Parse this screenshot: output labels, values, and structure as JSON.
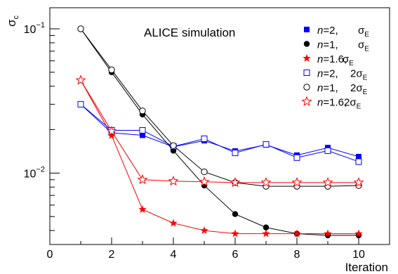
{
  "chart_data": {
    "type": "scatter",
    "title": "ALICE simulation",
    "xlabel": "Iteration",
    "ylabel": "σ",
    "ylabel_sub": "c",
    "xlim": [
      0,
      11
    ],
    "ylim": [
      0.0032,
      0.14
    ],
    "yscale": "log",
    "grid": false,
    "legend_position": "top-right",
    "x_ticks": [
      0,
      2,
      4,
      6,
      8,
      10
    ],
    "x_tick_labels": [
      "0",
      "2",
      "4",
      "6",
      "8",
      "10"
    ],
    "y_ticks": [
      {
        "value": 0.1,
        "base": "10",
        "exp": "−1"
      },
      {
        "value": 0.01,
        "base": "10",
        "exp": "−2"
      }
    ],
    "series": [
      {
        "label_n": "n",
        "label_val": "=2,",
        "label_sigma": "σ",
        "label_pre": "",
        "label_sub": "E",
        "marker": "square-filled",
        "color": "#0000ff",
        "x": [
          1,
          2,
          3,
          4,
          5,
          6,
          7,
          8,
          9,
          10
        ],
        "y": [
          0.03,
          0.019,
          0.0183,
          0.0152,
          0.0168,
          0.0142,
          0.0157,
          0.0133,
          0.015,
          0.013
        ]
      },
      {
        "label_n": "n",
        "label_val": "=1,",
        "label_sigma": "σ",
        "label_pre": "",
        "label_sub": "E",
        "marker": "circle-filled",
        "color": "#000000",
        "x": [
          1,
          2,
          3,
          4,
          5,
          6,
          7,
          8,
          9,
          10
        ],
        "y": [
          0.1,
          0.05,
          0.0255,
          0.0143,
          0.0082,
          0.0052,
          0.0042,
          0.0038,
          0.0037,
          0.0037
        ]
      },
      {
        "label_n": "n",
        "label_val": "=1.6,",
        "label_sigma": "σ",
        "label_pre": "",
        "label_sub": "E",
        "marker": "star-filled",
        "color": "#ff0000",
        "x": [
          1,
          2,
          3,
          4,
          5,
          6,
          7,
          8,
          9,
          10
        ],
        "y": [
          0.044,
          0.0182,
          0.0056,
          0.0045,
          0.004,
          0.0038,
          0.0038,
          0.0038,
          0.0038,
          0.0038
        ]
      },
      {
        "label_n": "n",
        "label_val": "=2,",
        "label_sigma": "σ",
        "label_pre": "2",
        "label_sub": "E",
        "marker": "square-open",
        "color": "#0000ff",
        "x": [
          1,
          2,
          3,
          4,
          5,
          6,
          7,
          8,
          9,
          10
        ],
        "y": [
          0.03,
          0.0198,
          0.0198,
          0.0153,
          0.0173,
          0.0138,
          0.0158,
          0.0128,
          0.0143,
          0.012
        ]
      },
      {
        "label_n": "n",
        "label_val": "=1,",
        "label_sigma": "σ",
        "label_pre": "2",
        "label_sub": "E",
        "marker": "circle-open",
        "color": "#000000",
        "x": [
          1,
          2,
          3,
          4,
          5,
          6,
          7,
          8,
          9,
          10
        ],
        "y": [
          0.1,
          0.052,
          0.027,
          0.0155,
          0.0102,
          0.0086,
          0.0081,
          0.0081,
          0.0081,
          0.0082
        ]
      },
      {
        "label_n": "n",
        "label_val": "=1.6,",
        "label_sigma": "σ",
        "label_pre": "2",
        "label_sub": "E",
        "marker": "star-open",
        "color": "#ff0000",
        "x": [
          1,
          2,
          3,
          4,
          5,
          6,
          7,
          8,
          9,
          10
        ],
        "y": [
          0.044,
          0.0195,
          0.009,
          0.0088,
          0.0087,
          0.0086,
          0.0086,
          0.0086,
          0.0086,
          0.0086
        ]
      }
    ]
  }
}
